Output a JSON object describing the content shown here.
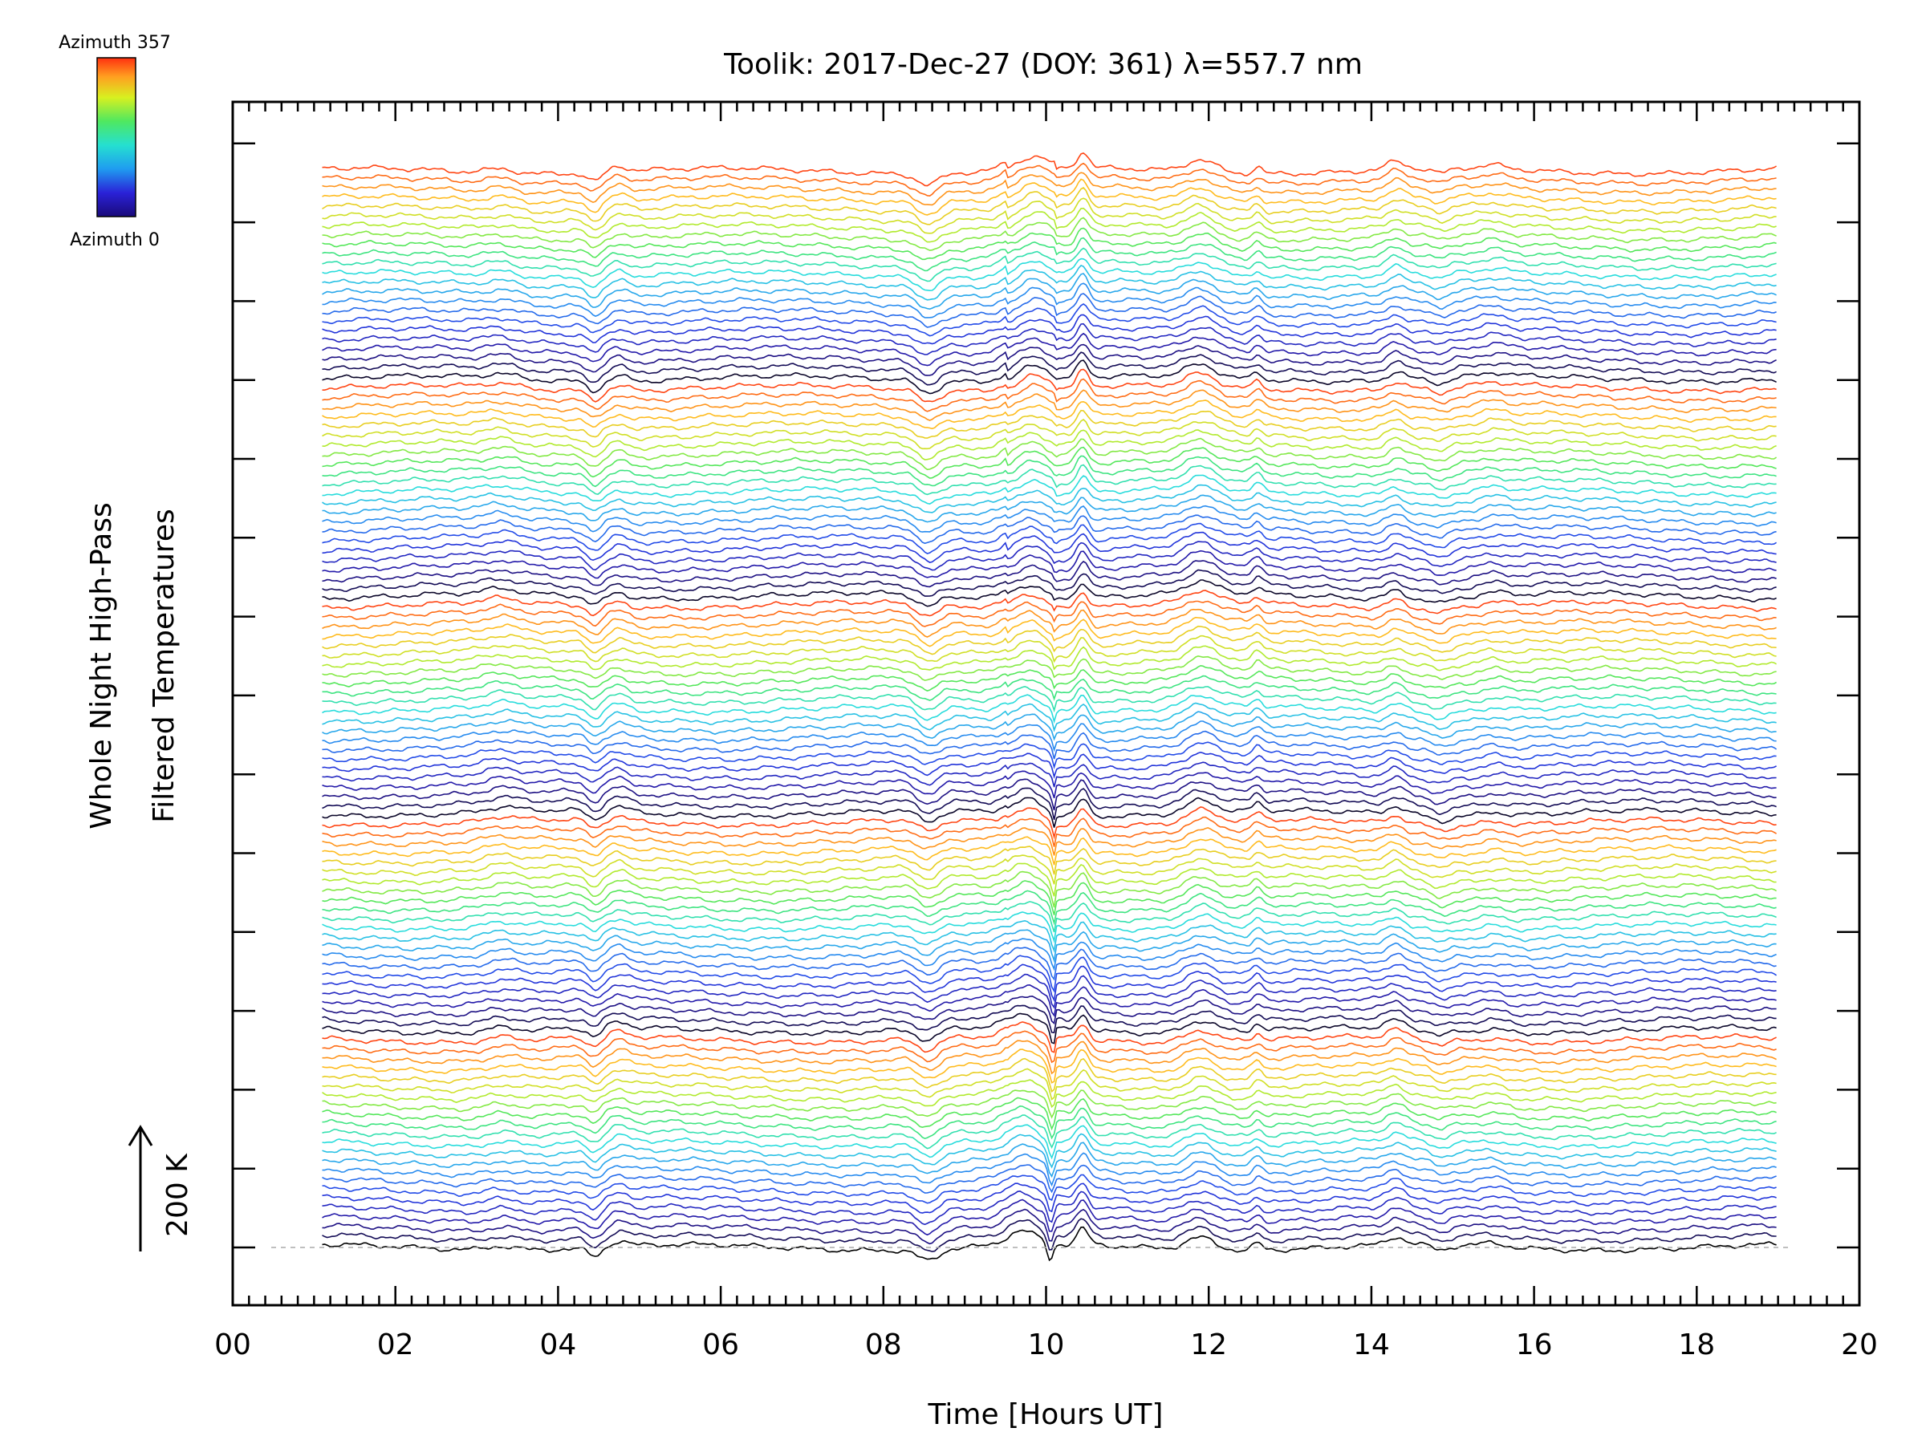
{
  "chart_data": {
    "type": "line",
    "title": "Toolik: 2017-Dec-27 (DOY: 361) λ=557.7 nm",
    "xlabel": "Time [Hours UT]",
    "ylabel_line1": "Whole Night High-Pass",
    "ylabel_line2": "Filtered Temperatures",
    "xlim": [
      0,
      20
    ],
    "x_ticks": [
      "00",
      "02",
      "04",
      "06",
      "08",
      "10",
      "12",
      "14",
      "16",
      "18",
      "20"
    ],
    "x_tick_values": [
      0,
      2,
      4,
      6,
      8,
      10,
      12,
      14,
      16,
      18,
      20
    ],
    "scale_bar_label": "200 K",
    "n_traces": 115,
    "azimuth_range": [
      0,
      357
    ],
    "colorbar": {
      "top_label": "Azimuth 357",
      "bottom_label": "Azimuth 0"
    },
    "data_time_range": [
      1.1,
      19.0
    ],
    "grid": false,
    "stacked_offset_description": "traces vertically offset, baseline dashed at first trace",
    "colors": {
      "baseline": "#aaaaaa",
      "axis": "#000000"
    },
    "features": [
      {
        "t": 4.45,
        "amp": -1.0,
        "w": 0.12
      },
      {
        "t": 4.75,
        "amp": 0.6,
        "w": 0.15
      },
      {
        "t": 3.3,
        "amp": 0.5,
        "w": 0.25
      },
      {
        "t": 8.55,
        "amp": -1.3,
        "w": 0.18
      },
      {
        "t": 9.7,
        "amp": 1.6,
        "w": 0.25
      },
      {
        "t": 10.05,
        "amp": -2.0,
        "w": 0.05
      },
      {
        "t": 10.45,
        "amp": 1.8,
        "w": 0.1
      },
      {
        "t": 11.9,
        "amp": 1.4,
        "w": 0.25
      },
      {
        "t": 12.6,
        "amp": 0.8,
        "w": 0.08
      },
      {
        "t": 14.3,
        "amp": 0.9,
        "w": 0.15
      },
      {
        "t": 14.85,
        "amp": -0.6,
        "w": 0.15
      },
      {
        "t": 15.5,
        "amp": 0.4,
        "w": 0.2
      }
    ]
  }
}
